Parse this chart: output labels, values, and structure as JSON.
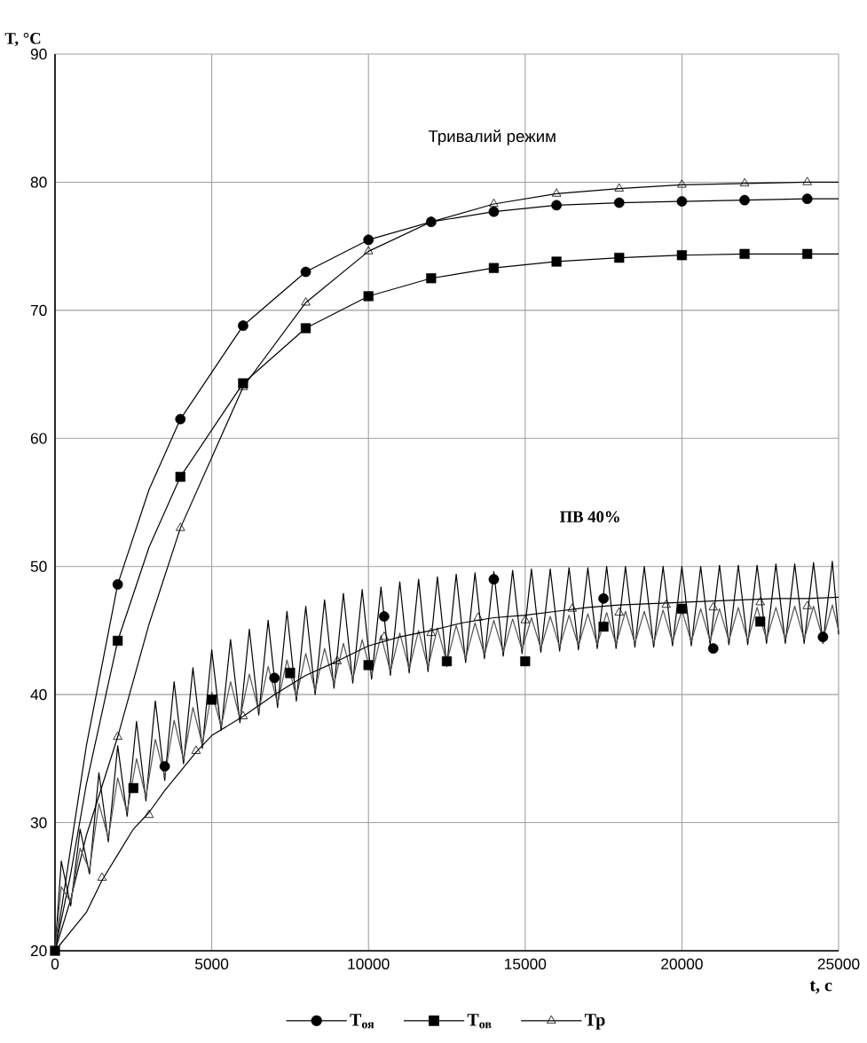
{
  "chart_data": {
    "type": "line",
    "xlabel": "t, с",
    "ylabel": "T, °C",
    "annotations": [
      "Тривалий режим",
      "ПВ 40%"
    ],
    "xlim": [
      0,
      25000
    ],
    "xticks": [
      0,
      5000,
      10000,
      15000,
      20000,
      25000
    ],
    "ylim": [
      20,
      90
    ],
    "yticks": [
      20,
      30,
      40,
      50,
      60,
      70,
      80,
      90
    ],
    "grid": true,
    "legend": "bottom",
    "series": [
      {
        "color": "#000000",
        "marker": "none",
        "x": [
          0,
          500,
          1000,
          2000,
          3000,
          4000,
          6000,
          8000,
          10000,
          12000,
          14000,
          16000,
          18000,
          20000,
          22000,
          24000,
          25000
        ],
        "values": [
          20,
          28,
          36,
          48.6,
          56,
          61.5,
          68.8,
          73,
          75.5,
          76.9,
          77.7,
          78.2,
          78.4,
          78.5,
          78.6,
          78.7,
          78.7
        ]
      },
      {
        "color": "#000000",
        "marker": "none",
        "x": [
          0,
          500,
          1000,
          2000,
          3000,
          4000,
          6000,
          8000,
          10000,
          12000,
          14000,
          16000,
          18000,
          20000,
          22000,
          24000,
          25000
        ],
        "values": [
          20,
          26,
          33,
          44.2,
          51.5,
          57,
          64.3,
          68.6,
          71.1,
          72.5,
          73.3,
          73.8,
          74.1,
          74.3,
          74.4,
          74.4,
          74.4
        ]
      },
      {
        "color": "#000000",
        "marker": "none",
        "x": [
          0,
          500,
          1000,
          2000,
          3000,
          4000,
          6000,
          8000,
          10000,
          12000,
          14000,
          16000,
          18000,
          20000,
          22000,
          24000,
          25000
        ],
        "values": [
          20,
          24,
          29,
          36.7,
          45.5,
          53,
          64,
          70.6,
          74.6,
          76.9,
          78.3,
          79.1,
          79.5,
          79.8,
          79.9,
          80,
          80
        ]
      },
      {
        "color": "#000000",
        "marker": "none",
        "x": [
          0,
          200,
          500,
          800,
          1100,
          1400,
          1700,
          2000,
          2300,
          2600,
          2900,
          3200,
          3500,
          3800,
          4100,
          4400,
          4700,
          5000,
          5300,
          5600,
          5900,
          6200,
          6500,
          6800,
          7100,
          7400,
          7700,
          8000,
          8300,
          8600,
          8900,
          9200,
          9500,
          9800,
          10100,
          10400,
          10700,
          11000,
          11300,
          11600,
          11900,
          12200,
          12500,
          12800,
          13100,
          13400,
          13700,
          14000,
          14300,
          14600,
          14900,
          15200,
          15500,
          15800,
          16100,
          16400,
          16700,
          17000,
          17300,
          17600,
          17900,
          18200,
          18500,
          18800,
          19100,
          19400,
          19700,
          20000,
          20300,
          20600,
          20900,
          21200,
          21500,
          21800,
          22100,
          22400,
          22700,
          23000,
          23300,
          23600,
          23900,
          24200,
          24500,
          24800,
          25000
        ],
        "values": [
          20,
          27,
          23.5,
          29.5,
          26,
          33.9,
          28.5,
          36,
          30.5,
          37.9,
          31.7,
          39.5,
          33.3,
          41,
          34.6,
          42.1,
          35.8,
          43.5,
          37.2,
          44.3,
          37.8,
          45.1,
          38.4,
          45.8,
          39,
          46.5,
          39.5,
          46.9,
          40,
          47.4,
          40.5,
          47.9,
          40.9,
          48.2,
          41.2,
          48.4,
          41.5,
          48.8,
          41.7,
          49,
          41.8,
          49.2,
          42.2,
          49.4,
          42.5,
          49.5,
          42.8,
          49.6,
          43,
          49.7,
          43.2,
          49.8,
          43.3,
          49.8,
          43.4,
          49.9,
          43.5,
          49.9,
          43.6,
          50,
          43.6,
          50,
          43.7,
          50,
          43.7,
          50,
          43.8,
          50,
          43.8,
          50,
          43.9,
          50.1,
          43.9,
          50.1,
          43.9,
          50.1,
          44,
          50.2,
          44,
          50.2,
          44,
          50.3,
          44,
          50.4,
          44.7
        ]
      },
      {
        "color": "#555555",
        "marker": "none",
        "x": [
          0,
          200,
          500,
          800,
          1100,
          1400,
          1700,
          2000,
          2300,
          2600,
          2900,
          3200,
          3500,
          3800,
          4100,
          4400,
          4700,
          5000,
          5300,
          5600,
          5900,
          6200,
          6500,
          6800,
          7100,
          7400,
          7700,
          8000,
          8300,
          8600,
          8900,
          9200,
          9500,
          9800,
          10100,
          10400,
          10700,
          11000,
          11300,
          11600,
          11900,
          12200,
          12500,
          12800,
          13100,
          13400,
          13700,
          14000,
          14300,
          14600,
          14900,
          15200,
          15500,
          15800,
          16100,
          16400,
          16700,
          17000,
          17300,
          17600,
          17900,
          18200,
          18500,
          18800,
          19100,
          19400,
          19700,
          20000,
          20300,
          20600,
          20900,
          21200,
          21500,
          21800,
          22100,
          22400,
          22700,
          23000,
          23300,
          23600,
          23900,
          24200,
          24500,
          24800,
          25000
        ],
        "values": [
          20,
          25,
          23.8,
          28,
          26.3,
          31.5,
          28.8,
          33.5,
          30.8,
          35,
          32,
          36.5,
          33.6,
          38,
          34.9,
          39,
          36.1,
          40.2,
          37.5,
          41,
          38.1,
          41.6,
          38.7,
          42.2,
          39.3,
          42.7,
          39.8,
          43.2,
          40.3,
          43.6,
          40.8,
          44,
          41.2,
          44.3,
          41.5,
          44.6,
          41.8,
          44.8,
          42,
          45,
          42.1,
          45.2,
          42.5,
          45.4,
          42.8,
          45.6,
          43.1,
          45.8,
          43.3,
          45.9,
          43.5,
          46,
          43.6,
          46.1,
          43.7,
          46.2,
          43.8,
          46.3,
          43.9,
          46.4,
          43.9,
          46.5,
          44,
          46.5,
          44,
          46.6,
          44.1,
          46.6,
          44.1,
          46.7,
          44.2,
          46.7,
          44.2,
          46.8,
          44.2,
          46.8,
          44.3,
          46.8,
          44.3,
          46.9,
          44.3,
          46.9,
          44.3,
          47,
          45
        ]
      },
      {
        "color": "#000000",
        "marker": "none",
        "x": [
          0,
          500,
          1000,
          1500,
          2000,
          2500,
          3000,
          3500,
          4000,
          4500,
          5000,
          6000,
          7000,
          8000,
          9000,
          10000,
          11000,
          12000,
          13000,
          14000,
          15000,
          16000,
          17000,
          18000,
          19000,
          20000,
          21000,
          22000,
          23000,
          24000,
          25000
        ],
        "values": [
          20,
          21.5,
          23,
          25.5,
          27.5,
          29.5,
          30.8,
          32.5,
          34,
          35.5,
          36.8,
          38.3,
          40,
          41.5,
          42.6,
          43.8,
          44.5,
          45,
          45.6,
          46,
          46.2,
          46.5,
          46.8,
          47,
          47.1,
          47.2,
          47.3,
          47.4,
          47.5,
          47.5,
          47.6
        ]
      },
      {
        "type": "scatter",
        "name": "Т$_{оя}$",
        "color": "#000000",
        "marker": "circle",
        "x": [
          2000,
          4000,
          6000,
          8000,
          10000,
          12000,
          14000,
          16000,
          18000,
          20000,
          22000,
          24000,
          3500,
          7000,
          10500,
          14000,
          17500,
          21000,
          24500
        ],
        "values": [
          48.6,
          61.5,
          68.8,
          73,
          75.5,
          76.9,
          77.7,
          78.2,
          78.4,
          78.5,
          78.6,
          78.7,
          34.4,
          41.3,
          46.1,
          49,
          47.5,
          43.6,
          44.5
        ]
      },
      {
        "type": "scatter",
        "name": "Т$_{ов}$",
        "color": "#000000",
        "marker": "square",
        "x": [
          0,
          2000,
          4000,
          6000,
          8000,
          10000,
          12000,
          14000,
          16000,
          18000,
          20000,
          22000,
          24000,
          2500,
          5000,
          7500,
          10000,
          12500,
          15000,
          17500,
          20000,
          22500
        ],
        "values": [
          20,
          44.2,
          57,
          64.3,
          68.6,
          71.1,
          72.5,
          73.3,
          73.8,
          74.1,
          74.3,
          74.4,
          74.4,
          32.7,
          39.6,
          41.7,
          42.3,
          42.6,
          42.6,
          45.3,
          46.7,
          45.7
        ]
      },
      {
        "type": "scatter",
        "name": "Тр",
        "color": "#000000",
        "marker": "triangle",
        "x": [
          2000,
          4000,
          6000,
          8000,
          10000,
          12000,
          14000,
          16000,
          18000,
          20000,
          22000,
          24000,
          1500,
          3000,
          4500,
          6000,
          7500,
          9000,
          10500,
          12000,
          13500,
          15000,
          16500,
          18000,
          19500,
          21000,
          22500,
          24000
        ],
        "values": [
          36.7,
          53,
          64,
          70.6,
          74.6,
          76.9,
          78.3,
          79.1,
          79.5,
          79.8,
          79.9,
          80,
          25.7,
          30.6,
          35.6,
          38.3,
          41.5,
          42.6,
          44.5,
          44.8,
          46,
          45.8,
          46.7,
          46.4,
          47,
          46.8,
          47.2,
          46.9
        ]
      }
    ]
  }
}
